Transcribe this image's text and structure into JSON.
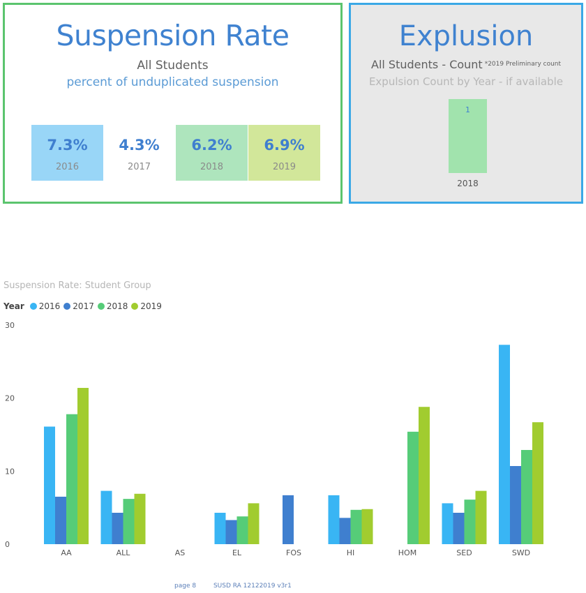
{
  "suspension": {
    "title": "Suspension Rate",
    "subtitle": "All Students",
    "subtitle2": "percent of unduplicated suspension",
    "tiles": [
      {
        "value": "7.3%",
        "year": "2016"
      },
      {
        "value": "4.3%",
        "year": "2017"
      },
      {
        "value": "6.2%",
        "year": "2018"
      },
      {
        "value": "6.9%",
        "year": "2019"
      }
    ]
  },
  "expulsion": {
    "title": "Explusion",
    "subtitle": "All Students - Count",
    "note": "*2019 Preliminary count",
    "subtitle2": "Expulsion Count by Year - if available",
    "bar_value": "1",
    "bar_year": "2018"
  },
  "colors": {
    "2016": "#39b5f4",
    "2017": "#3f7fcf",
    "2018": "#56cc78",
    "2019": "#a1cc2f"
  },
  "chart_data": {
    "type": "bar",
    "title": "Suspension Rate: Student Group",
    "legend_title": "Year",
    "legend_position": "top-left",
    "categories": [
      "AA",
      "ALL",
      "AS",
      "EL",
      "FOS",
      "HI",
      "HOM",
      "SED",
      "SWD"
    ],
    "series": [
      {
        "name": "2016",
        "values": [
          16.1,
          7.3,
          null,
          4.3,
          null,
          6.7,
          null,
          5.6,
          27.3
        ]
      },
      {
        "name": "2017",
        "values": [
          6.5,
          4.3,
          null,
          3.3,
          6.7,
          3.6,
          null,
          4.3,
          10.7
        ]
      },
      {
        "name": "2018",
        "values": [
          17.8,
          6.2,
          null,
          3.8,
          null,
          4.7,
          15.4,
          6.1,
          12.9
        ]
      },
      {
        "name": "2019",
        "values": [
          21.4,
          6.9,
          null,
          5.6,
          null,
          4.8,
          18.8,
          7.3,
          16.7
        ]
      }
    ],
    "ylim": [
      0,
      30
    ],
    "yticks": [
      0,
      10,
      20,
      30
    ],
    "grid": false
  },
  "footer": {
    "page": "page 8",
    "doc": "SUSD RA 12122019 v3r1"
  }
}
